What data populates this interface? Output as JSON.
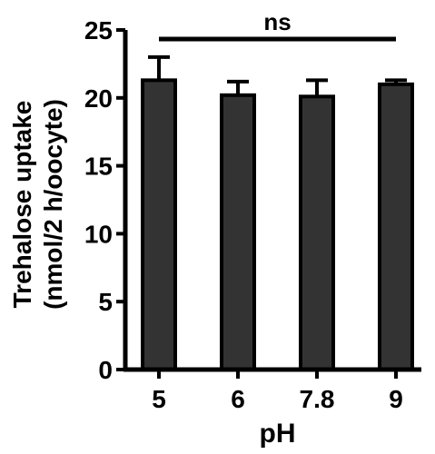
{
  "chart_data": {
    "type": "bar",
    "xlabel": "pH",
    "ylabel_line1": "Trehalose uptake",
    "ylabel_line2": "(nmol/2 h/oocyte)",
    "categories": [
      "5",
      "6",
      "7.8",
      "9"
    ],
    "values": [
      21.3,
      20.2,
      20.1,
      21.0
    ],
    "error_upper": [
      1.7,
      1.0,
      1.2,
      0.3
    ],
    "ylim": [
      0,
      25
    ],
    "yticks": [
      "0",
      "5",
      "10",
      "15",
      "20",
      "25"
    ],
    "annotation": "ns",
    "grid": false,
    "bar_color": "#333333",
    "axis_color": "#000000"
  }
}
